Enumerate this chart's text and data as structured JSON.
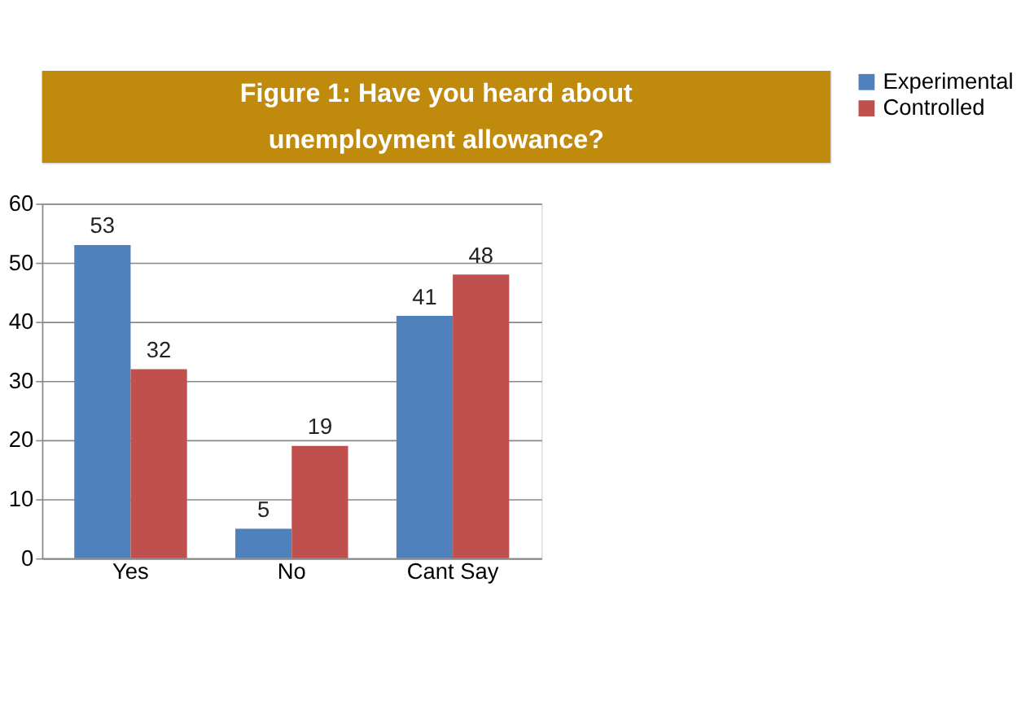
{
  "chart_data": {
    "type": "bar",
    "title": "Figure 1: Have you heard about unemployment allowance?",
    "categories": [
      "Yes",
      "No",
      "Cant Say"
    ],
    "series": [
      {
        "name": "Experimental",
        "color": "#4f81bd",
        "values": [
          53,
          5,
          41
        ]
      },
      {
        "name": "Controlled",
        "color": "#c0504d",
        "values": [
          32,
          19,
          48
        ]
      }
    ],
    "ylim": [
      0,
      60
    ],
    "yticks": [
      0,
      10,
      20,
      30,
      40,
      50,
      60
    ],
    "grid": "y",
    "legend": "right",
    "data_labels": true
  }
}
